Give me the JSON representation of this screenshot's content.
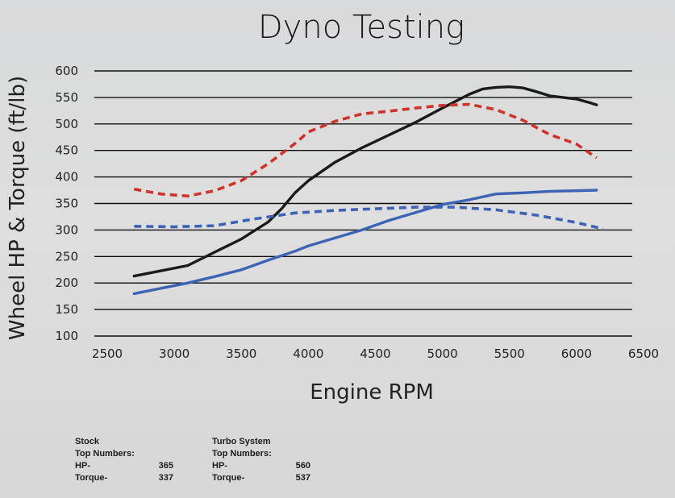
{
  "chart_data": {
    "type": "line",
    "title": "Dyno Testing",
    "xlabel": "Engine RPM",
    "ylabel": "Wheel HP & Torque (ft/lb)",
    "xlim": [
      2500,
      6500
    ],
    "ylim": [
      100,
      600
    ],
    "x_ticks": [
      "2500",
      "3000",
      "3500",
      "4000",
      "4500",
      "5000",
      "5500",
      "6000",
      "6500"
    ],
    "y_ticks": [
      "100",
      "150",
      "200",
      "250",
      "300",
      "350",
      "400",
      "450",
      "500",
      "550",
      "600"
    ],
    "grid": "horizontal",
    "series": [
      {
        "color": "#1a1a1a",
        "style": "solid",
        "points": [
          [
            2700,
            213
          ],
          [
            2900,
            223
          ],
          [
            3100,
            233
          ],
          [
            3300,
            258
          ],
          [
            3500,
            283
          ],
          [
            3700,
            315
          ],
          [
            3800,
            340
          ],
          [
            3900,
            370
          ],
          [
            4000,
            393
          ],
          [
            4200,
            428
          ],
          [
            4400,
            455
          ],
          [
            4600,
            479
          ],
          [
            4800,
            503
          ],
          [
            5000,
            530
          ],
          [
            5200,
            556
          ],
          [
            5300,
            566
          ],
          [
            5400,
            569
          ],
          [
            5500,
            570
          ],
          [
            5600,
            568
          ],
          [
            5700,
            561
          ],
          [
            5800,
            553
          ],
          [
            6000,
            547
          ],
          [
            6100,
            540
          ],
          [
            6150,
            536
          ]
        ]
      },
      {
        "color": "#d1322a",
        "style": "dashed",
        "points": [
          [
            2700,
            377
          ],
          [
            2900,
            368
          ],
          [
            3100,
            364
          ],
          [
            3300,
            374
          ],
          [
            3500,
            393
          ],
          [
            3700,
            425
          ],
          [
            3900,
            463
          ],
          [
            4000,
            485
          ],
          [
            4200,
            505
          ],
          [
            4400,
            519
          ],
          [
            4600,
            524
          ],
          [
            4800,
            530
          ],
          [
            5000,
            535
          ],
          [
            5200,
            537
          ],
          [
            5400,
            527
          ],
          [
            5600,
            507
          ],
          [
            5800,
            480
          ],
          [
            6000,
            462
          ],
          [
            6150,
            436
          ]
        ]
      },
      {
        "color": "#3d63b5",
        "style": "solid",
        "points": [
          [
            2700,
            180
          ],
          [
            2900,
            190
          ],
          [
            3100,
            200
          ],
          [
            3300,
            212
          ],
          [
            3500,
            225
          ],
          [
            3700,
            243
          ],
          [
            3900,
            260
          ],
          [
            4000,
            270
          ],
          [
            4200,
            285
          ],
          [
            4400,
            300
          ],
          [
            4600,
            318
          ],
          [
            4800,
            333
          ],
          [
            5000,
            348
          ],
          [
            5200,
            357
          ],
          [
            5400,
            368
          ],
          [
            5600,
            370
          ],
          [
            5800,
            373
          ],
          [
            6000,
            374
          ],
          [
            6150,
            375
          ]
        ]
      },
      {
        "color": "#3d63b5",
        "style": "dashed",
        "points": [
          [
            2700,
            307
          ],
          [
            3000,
            306
          ],
          [
            3300,
            308
          ],
          [
            3600,
            321
          ],
          [
            3900,
            332
          ],
          [
            4200,
            337
          ],
          [
            4500,
            340
          ],
          [
            4800,
            343
          ],
          [
            5100,
            343
          ],
          [
            5400,
            338
          ],
          [
            5700,
            328
          ],
          [
            6000,
            314
          ],
          [
            6200,
            302
          ]
        ]
      }
    ]
  },
  "notes": {
    "stock": {
      "heading": "Stock",
      "subheading": "Top Numbers:",
      "hp_label": "HP-",
      "hp_value": "365",
      "torque_label": "Torque-",
      "torque_value": "337"
    },
    "turbo": {
      "heading": "Turbo System",
      "subheading": "Top Numbers:",
      "hp_label": "HP-",
      "hp_value": "560",
      "torque_label": "Torque-",
      "torque_value": "537"
    }
  }
}
